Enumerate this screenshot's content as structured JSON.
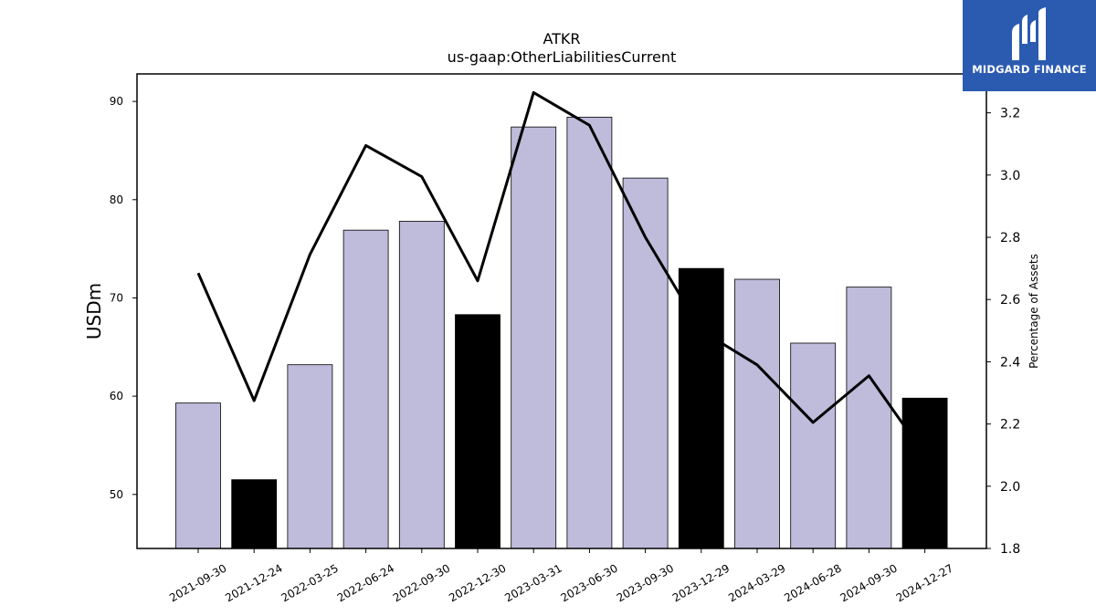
{
  "brand": {
    "name": "MIDGARD FINANCE",
    "icon": "midgard-logo-icon",
    "bg_color": "#2b5bb0"
  },
  "chart_data": {
    "type": "bar",
    "title": "ATKR",
    "subtitle": "us-gaap:OtherLiabilitiesCurrent",
    "ylabel": "USDm",
    "y2label": "Percentage of Assets",
    "categories": [
      "2021-09-30",
      "2021-12-24",
      "2022-03-25",
      "2022-06-24",
      "2022-09-30",
      "2022-12-30",
      "2023-03-31",
      "2023-06-30",
      "2023-09-30",
      "2023-12-29",
      "2024-03-29",
      "2024-06-28",
      "2024-09-30",
      "2024-12-27"
    ],
    "ylim": [
      44.5,
      92.8
    ],
    "y2lim": [
      1.8,
      3.325
    ],
    "yticks": [
      50,
      60,
      70,
      80,
      90
    ],
    "y2ticks": [
      1.8,
      2.0,
      2.2,
      2.4,
      2.6,
      2.8,
      3.0,
      3.2
    ],
    "series": [
      {
        "type": "bar",
        "axis": "left",
        "values": [
          59.3,
          51.5,
          63.2,
          76.9,
          77.8,
          68.3,
          87.4,
          88.4,
          82.2,
          73.0,
          71.9,
          65.4,
          71.1,
          59.8
        ],
        "highlight": [
          false,
          true,
          false,
          false,
          false,
          true,
          false,
          false,
          false,
          true,
          false,
          false,
          false,
          true
        ]
      },
      {
        "type": "line",
        "axis": "right",
        "values": [
          2.685,
          2.275,
          2.745,
          3.095,
          2.995,
          2.66,
          3.265,
          3.16,
          2.8,
          2.5,
          2.39,
          2.205,
          2.355,
          2.1
        ]
      }
    ],
    "colors": {
      "bar": "#bebbdb",
      "bar_highlight": "#000000",
      "bar_edge": "#000000",
      "line": "#000000"
    },
    "grid": false,
    "legend": "none"
  }
}
